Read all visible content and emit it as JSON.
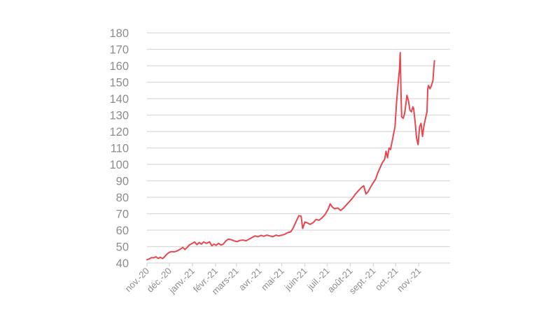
{
  "chart_data": {
    "type": "line",
    "title": "",
    "xlabel": "",
    "ylabel": "",
    "ylim": [
      40,
      180
    ],
    "yticks": [
      40,
      50,
      60,
      70,
      80,
      90,
      100,
      110,
      120,
      130,
      140,
      150,
      160,
      170,
      180
    ],
    "xlim": [
      "2020-11-01",
      "2021-12-13"
    ],
    "xticks": [
      {
        "date": "2020-11-01",
        "label": "nov.-20"
      },
      {
        "date": "2020-12-01",
        "label": "déc.-20"
      },
      {
        "date": "2021-01-01",
        "label": "janv.-21"
      },
      {
        "date": "2021-02-01",
        "label": "févr.-21"
      },
      {
        "date": "2021-03-01",
        "label": "mars-21"
      },
      {
        "date": "2021-04-01",
        "label": "avr.-21"
      },
      {
        "date": "2021-05-01",
        "label": "mai-21"
      },
      {
        "date": "2021-06-01",
        "label": "juin-21"
      },
      {
        "date": "2021-07-01",
        "label": "juil.-21"
      },
      {
        "date": "2021-08-01",
        "label": "août-21"
      },
      {
        "date": "2021-09-01",
        "label": "sept.-21"
      },
      {
        "date": "2021-10-01",
        "label": "oct.-21"
      },
      {
        "date": "2021-11-01",
        "label": "nov.-21"
      }
    ],
    "grid": true,
    "legend": "none",
    "color": "#e8474f",
    "series": [
      {
        "points": [
          [
            "2020-11-01",
            42
          ],
          [
            "2020-11-04",
            42.5
          ],
          [
            "2020-11-07",
            43.3
          ],
          [
            "2020-11-10",
            43.2
          ],
          [
            "2020-11-13",
            43.8
          ],
          [
            "2020-11-16",
            42.8
          ],
          [
            "2020-11-19",
            43.5
          ],
          [
            "2020-11-22",
            42.7
          ],
          [
            "2020-11-25",
            44
          ],
          [
            "2020-11-28",
            45.5
          ],
          [
            "2020-12-01",
            46.5
          ],
          [
            "2020-12-04",
            47
          ],
          [
            "2020-12-08",
            46.8
          ],
          [
            "2020-12-12",
            47.5
          ],
          [
            "2020-12-16",
            48.5
          ],
          [
            "2020-12-19",
            49.5
          ],
          [
            "2020-12-22",
            48.2
          ],
          [
            "2020-12-25",
            49.5
          ],
          [
            "2020-12-28",
            51
          ],
          [
            "2021-01-01",
            52
          ],
          [
            "2021-01-04",
            52.8
          ],
          [
            "2021-01-07",
            51.2
          ],
          [
            "2021-01-10",
            52.5
          ],
          [
            "2021-01-13",
            51.5
          ],
          [
            "2021-01-16",
            52.8
          ],
          [
            "2021-01-20",
            52
          ],
          [
            "2021-01-24",
            52.9
          ],
          [
            "2021-01-27",
            50.5
          ],
          [
            "2021-01-30",
            51.5
          ],
          [
            "2021-02-02",
            50.8
          ],
          [
            "2021-02-05",
            52
          ],
          [
            "2021-02-08",
            51
          ],
          [
            "2021-02-11",
            51.3
          ],
          [
            "2021-02-15",
            53.5
          ],
          [
            "2021-02-18",
            54.5
          ],
          [
            "2021-02-22",
            54.2
          ],
          [
            "2021-02-26",
            53.5
          ],
          [
            "2021-03-02",
            53
          ],
          [
            "2021-03-06",
            53.8
          ],
          [
            "2021-03-10",
            54
          ],
          [
            "2021-03-14",
            53.5
          ],
          [
            "2021-03-18",
            54.5
          ],
          [
            "2021-03-22",
            55.5
          ],
          [
            "2021-03-26",
            56.5
          ],
          [
            "2021-03-30",
            56
          ],
          [
            "2021-04-03",
            56.8
          ],
          [
            "2021-04-07",
            56.3
          ],
          [
            "2021-04-11",
            57
          ],
          [
            "2021-04-15",
            56.5
          ],
          [
            "2021-04-19",
            56
          ],
          [
            "2021-04-23",
            57
          ],
          [
            "2021-04-27",
            56.5
          ],
          [
            "2021-05-01",
            57
          ],
          [
            "2021-05-05",
            57.5
          ],
          [
            "2021-05-09",
            58.5
          ],
          [
            "2021-05-13",
            59
          ],
          [
            "2021-05-16",
            61
          ],
          [
            "2021-05-19",
            64
          ],
          [
            "2021-05-22",
            67
          ],
          [
            "2021-05-24",
            68.8
          ],
          [
            "2021-05-27",
            68.5
          ],
          [
            "2021-05-29",
            61
          ],
          [
            "2021-06-01",
            65
          ],
          [
            "2021-06-04",
            64.5
          ],
          [
            "2021-06-08",
            63.5
          ],
          [
            "2021-06-12",
            64.5
          ],
          [
            "2021-06-16",
            66.5
          ],
          [
            "2021-06-20",
            66
          ],
          [
            "2021-06-24",
            67.5
          ],
          [
            "2021-06-28",
            69.5
          ],
          [
            "2021-07-02",
            72.5
          ],
          [
            "2021-07-05",
            76
          ],
          [
            "2021-07-08",
            74
          ],
          [
            "2021-07-11",
            73
          ],
          [
            "2021-07-15",
            73.5
          ],
          [
            "2021-07-19",
            72
          ],
          [
            "2021-07-23",
            73.5
          ],
          [
            "2021-07-27",
            75.5
          ],
          [
            "2021-07-31",
            77.5
          ],
          [
            "2021-08-04",
            79.5
          ],
          [
            "2021-08-08",
            82
          ],
          [
            "2021-08-12",
            84
          ],
          [
            "2021-08-16",
            86
          ],
          [
            "2021-08-19",
            87
          ],
          [
            "2021-08-22",
            82
          ],
          [
            "2021-08-25",
            83.5
          ],
          [
            "2021-08-28",
            86
          ],
          [
            "2021-09-01",
            89
          ],
          [
            "2021-09-04",
            91
          ],
          [
            "2021-09-07",
            95
          ],
          [
            "2021-09-10",
            98
          ],
          [
            "2021-09-13",
            101
          ],
          [
            "2021-09-16",
            103
          ],
          [
            "2021-09-18",
            108
          ],
          [
            "2021-09-20",
            104
          ],
          [
            "2021-09-22",
            110
          ],
          [
            "2021-09-24",
            109
          ],
          [
            "2021-09-27",
            116
          ],
          [
            "2021-09-30",
            123
          ],
          [
            "2021-10-02",
            137
          ],
          [
            "2021-10-04",
            148
          ],
          [
            "2021-10-06",
            158
          ],
          [
            "2021-10-07",
            168
          ],
          [
            "2021-10-08",
            145
          ],
          [
            "2021-10-09",
            129
          ],
          [
            "2021-10-11",
            128
          ],
          [
            "2021-10-13",
            131
          ],
          [
            "2021-10-15",
            138
          ],
          [
            "2021-10-16",
            142
          ],
          [
            "2021-10-18",
            139
          ],
          [
            "2021-10-20",
            133
          ],
          [
            "2021-10-22",
            132
          ],
          [
            "2021-10-24",
            135
          ],
          [
            "2021-10-25",
            134
          ],
          [
            "2021-10-27",
            126
          ],
          [
            "2021-10-29",
            116
          ],
          [
            "2021-10-31",
            112
          ],
          [
            "2021-11-02",
            123
          ],
          [
            "2021-11-04",
            125
          ],
          [
            "2021-11-06",
            117
          ],
          [
            "2021-11-08",
            124
          ],
          [
            "2021-11-10",
            128
          ],
          [
            "2021-11-12",
            132
          ],
          [
            "2021-11-13",
            146
          ],
          [
            "2021-11-14",
            148
          ],
          [
            "2021-11-16",
            146
          ],
          [
            "2021-11-18",
            148
          ],
          [
            "2021-11-20",
            151
          ],
          [
            "2021-11-21",
            158
          ],
          [
            "2021-11-22",
            163
          ]
        ]
      }
    ]
  }
}
